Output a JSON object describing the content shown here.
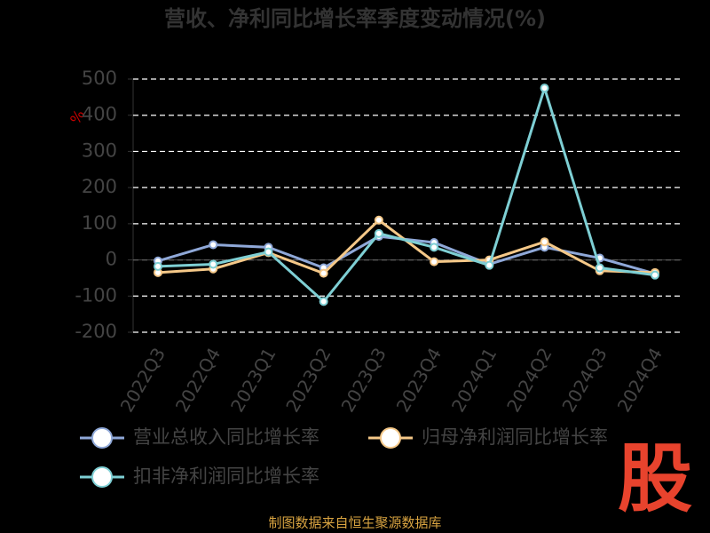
{
  "chart_data": {
    "type": "line",
    "title": "营收、净利同比增长率季度变动情况(%)",
    "y_label": "%",
    "categories": [
      "2022Q3",
      "2022Q4",
      "2023Q1",
      "2023Q2",
      "2023Q3",
      "2023Q4",
      "2024Q1",
      "2024Q2",
      "2024Q3",
      "2024Q4"
    ],
    "series": [
      {
        "name": "营业总收入同比增长率",
        "color": "#8fa8d8",
        "values": [
          -3,
          42,
          35,
          -22,
          65,
          48,
          -12,
          35,
          5,
          -38
        ]
      },
      {
        "name": "归母净利润同比增长率",
        "color": "#f5c888",
        "values": [
          -35,
          -25,
          20,
          -37,
          110,
          -5,
          0,
          50,
          -30,
          -35
        ]
      },
      {
        "name": "扣非净利润同比增长率",
        "color": "#7ecfd4",
        "values": [
          -18,
          -12,
          22,
          -115,
          73,
          35,
          -15,
          475,
          -22,
          -42
        ]
      }
    ],
    "ylim": [
      -200,
      500
    ],
    "yticks": [
      -200,
      -100,
      0,
      100,
      200,
      300,
      400,
      500
    ],
    "grid": true,
    "source": "制图数据来自恒生聚源数据库",
    "logo": "股"
  }
}
